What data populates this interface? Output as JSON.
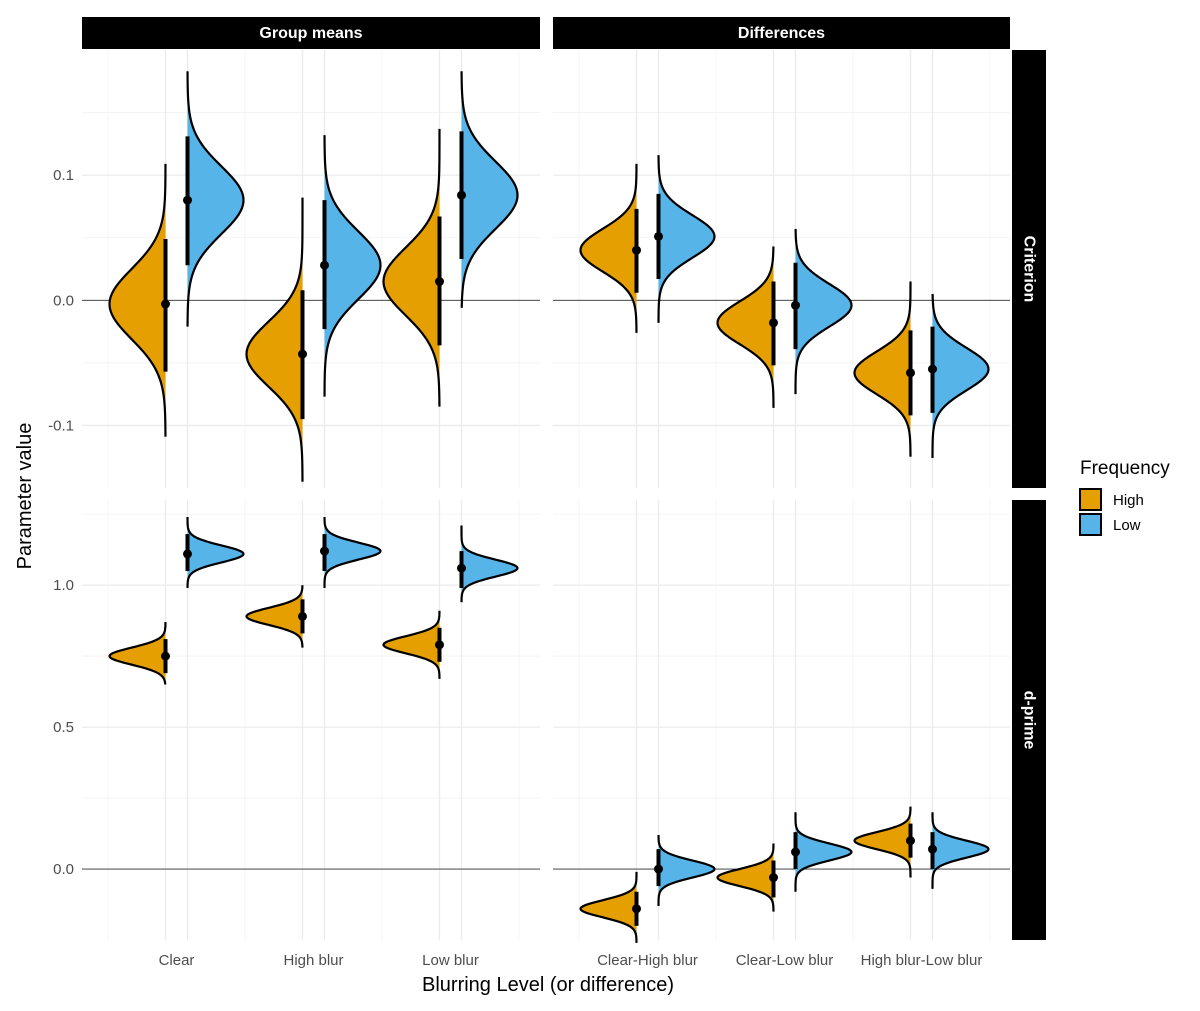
{
  "chart_data": {
    "type": "half-violin",
    "xlabel": "Blurring Level (or difference)",
    "ylabel": "Parameter value",
    "legend": {
      "title": "Frequency",
      "position": "right",
      "entries": [
        {
          "name": "High",
          "color": "#E69F00"
        },
        {
          "name": "Low",
          "color": "#56B4E9"
        }
      ]
    },
    "columns": [
      {
        "label": "Group means",
        "categories": [
          "Clear",
          "High blur",
          "Low blur"
        ]
      },
      {
        "label": "Differences",
        "categories": [
          "Clear-High blur",
          "Clear-Low blur",
          "High blur-Low blur"
        ]
      }
    ],
    "rows": [
      {
        "label": "Criterion",
        "ylim": [
          -0.15,
          0.2
        ],
        "ticks": [
          -0.1,
          0.0,
          0.1
        ],
        "tick_labels": [
          "-0.1",
          "0.0",
          "0.1"
        ],
        "zero_line": 0
      },
      {
        "label": "d-prime",
        "ylim": [
          -0.25,
          1.3
        ],
        "ticks": [
          0.0,
          0.5,
          1.0
        ],
        "tick_labels": [
          "0.0",
          "0.5",
          "1.0"
        ],
        "zero_line": 0
      }
    ],
    "series": [
      {
        "name": "High",
        "color": "#E69F00",
        "values": [
          [
            {
              "mean": -0.003,
              "lo": -0.057,
              "hi": 0.049,
              "min": -0.109,
              "max": 0.109,
              "sd": 0.028
            },
            {
              "mean": -0.043,
              "lo": -0.095,
              "hi": 0.008,
              "min": -0.145,
              "max": 0.082,
              "sd": 0.026
            },
            {
              "mean": 0.015,
              "lo": -0.036,
              "hi": 0.067,
              "min": -0.085,
              "max": 0.137,
              "sd": 0.027
            }
          ],
          [
            {
              "mean": 0.04,
              "lo": 0.006,
              "hi": 0.073,
              "min": -0.026,
              "max": 0.109,
              "sd": 0.017
            },
            {
              "mean": -0.018,
              "lo": -0.052,
              "hi": 0.015,
              "min": -0.086,
              "max": 0.043,
              "sd": 0.017
            },
            {
              "mean": -0.058,
              "lo": -0.092,
              "hi": -0.024,
              "min": -0.125,
              "max": 0.015,
              "sd": 0.017
            }
          ],
          [
            {
              "mean": 0.75,
              "lo": 0.69,
              "hi": 0.81,
              "min": 0.65,
              "max": 0.87,
              "sd": 0.03
            },
            {
              "mean": 0.89,
              "lo": 0.83,
              "hi": 0.95,
              "min": 0.78,
              "max": 1.0,
              "sd": 0.03
            },
            {
              "mean": 0.79,
              "lo": 0.73,
              "hi": 0.85,
              "min": 0.67,
              "max": 0.91,
              "sd": 0.03
            }
          ],
          [
            {
              "mean": -0.14,
              "lo": -0.2,
              "hi": -0.08,
              "min": -0.26,
              "max": -0.01,
              "sd": 0.03
            },
            {
              "mean": -0.03,
              "lo": -0.1,
              "hi": 0.03,
              "min": -0.15,
              "max": 0.09,
              "sd": 0.03
            },
            {
              "mean": 0.1,
              "lo": 0.04,
              "hi": 0.16,
              "min": -0.03,
              "max": 0.22,
              "sd": 0.03
            }
          ]
        ]
      },
      {
        "name": "Low",
        "color": "#56B4E9",
        "values": [
          [
            {
              "mean": 0.08,
              "lo": 0.028,
              "hi": 0.131,
              "min": -0.021,
              "max": 0.183,
              "sd": 0.027
            },
            {
              "mean": 0.028,
              "lo": -0.023,
              "hi": 0.08,
              "min": -0.077,
              "max": 0.132,
              "sd": 0.027
            },
            {
              "mean": 0.084,
              "lo": 0.033,
              "hi": 0.135,
              "min": -0.006,
              "max": 0.183,
              "sd": 0.027
            }
          ],
          [
            {
              "mean": 0.051,
              "lo": 0.017,
              "hi": 0.085,
              "min": -0.018,
              "max": 0.116,
              "sd": 0.017
            },
            {
              "mean": -0.004,
              "lo": -0.039,
              "hi": 0.03,
              "min": -0.075,
              "max": 0.057,
              "sd": 0.017
            },
            {
              "mean": -0.055,
              "lo": -0.09,
              "hi": -0.021,
              "min": -0.126,
              "max": 0.005,
              "sd": 0.017
            }
          ],
          [
            {
              "mean": 1.11,
              "lo": 1.05,
              "hi": 1.18,
              "min": 0.99,
              "max": 1.24,
              "sd": 0.03
            },
            {
              "mean": 1.12,
              "lo": 1.05,
              "hi": 1.18,
              "min": 0.99,
              "max": 1.24,
              "sd": 0.03
            },
            {
              "mean": 1.06,
              "lo": 0.99,
              "hi": 1.12,
              "min": 0.94,
              "max": 1.21,
              "sd": 0.03
            }
          ],
          [
            {
              "mean": 0.0,
              "lo": -0.06,
              "hi": 0.07,
              "min": -0.13,
              "max": 0.12,
              "sd": 0.03
            },
            {
              "mean": 0.06,
              "lo": 0.0,
              "hi": 0.13,
              "min": -0.08,
              "max": 0.2,
              "sd": 0.03
            },
            {
              "mean": 0.07,
              "lo": 0.0,
              "hi": 0.13,
              "min": -0.07,
              "max": 0.2,
              "sd": 0.03
            }
          ]
        ]
      }
    ]
  }
}
